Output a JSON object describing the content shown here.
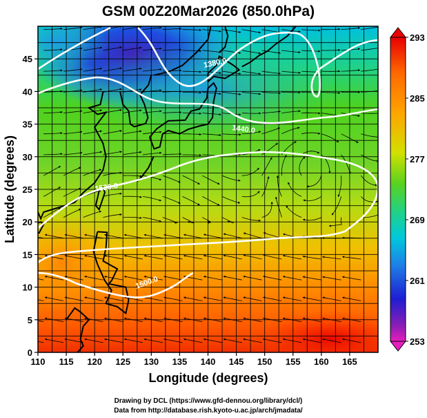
{
  "title": "GSM 00Z20Mar2026 (850.0hPa)",
  "x_axis": {
    "label": "Longitude (degrees)",
    "ticks": [
      "110",
      "115",
      "120",
      "125",
      "130",
      "135",
      "140",
      "145",
      "150",
      "155",
      "160",
      "165"
    ]
  },
  "y_axis": {
    "label": "Latitude  (degrees)",
    "ticks": [
      "0",
      "5",
      "10",
      "15",
      "20",
      "25",
      "30",
      "35",
      "40",
      "45"
    ]
  },
  "colorbar": {
    "labels": [
      "293",
      "285",
      "277",
      "269",
      "261",
      "253"
    ]
  },
  "contour_labels": [
    "1380.0",
    "1440.0",
    "1520.0",
    "1500.0"
  ],
  "credits": [
    "Drawing by DCL (https://www.gfd-dennou.org/library/dcl/)",
    "Data from http://database.rish.kyoto-u.ac.jp/arch/jmadata/"
  ],
  "chart_data": {
    "type": "heatmap",
    "title": "GSM 00Z20Mar2026 (850.0hPa)",
    "xlabel": "Longitude (degrees)",
    "ylabel": "Latitude  (degrees)",
    "xlim": [
      110,
      170
    ],
    "ylim": [
      0,
      50
    ],
    "x_ticks": [
      110,
      115,
      120,
      125,
      130,
      135,
      140,
      145,
      150,
      155,
      160,
      165
    ],
    "y_ticks": [
      0,
      5,
      10,
      15,
      20,
      25,
      30,
      35,
      40,
      45
    ],
    "color_range": [
      253,
      293
    ],
    "colorbar_ticks": [
      293,
      285,
      277,
      269,
      261,
      253
    ],
    "grid": true,
    "overlays": [
      "temperature shading",
      "geopotential height contours",
      "wind streamlines",
      "coastlines"
    ],
    "contours": [
      {
        "label": "1380.0",
        "lon": 138.5,
        "lat": 47.5
      },
      {
        "label": "1440.0",
        "lon": 143.5,
        "lat": 35.5
      },
      {
        "label": "1520.0",
        "lon": 121.5,
        "lat": 26.5
      },
      {
        "label": "1500.0",
        "lon": 130.5,
        "lat": 10.5
      }
    ]
  }
}
